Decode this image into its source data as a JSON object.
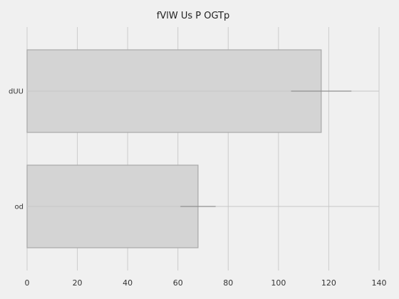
{
  "chart_data": {
    "type": "bar",
    "orientation": "horizontal",
    "title": "fVlW Us P OGTp",
    "xlabel": "",
    "ylabel": "",
    "categories": [
      "dUU",
      "od"
    ],
    "values": [
      117,
      68
    ],
    "error_bars": [
      {
        "whisker": [
          105,
          129
        ],
        "range": [
          0,
          140
        ]
      },
      {
        "whisker": [
          61,
          75
        ],
        "range": [
          0,
          140
        ]
      }
    ],
    "xlim": [
      0,
      140
    ],
    "xticks": [
      0,
      20,
      40,
      60,
      80,
      100,
      120,
      140
    ],
    "grid": true,
    "colors": {
      "background": "#f0f0f0",
      "bar_fill": "#d4d4d4",
      "bar_stroke": "#a8a8a8",
      "grid": "#cbcbcb",
      "whisker": "#8f8f8f",
      "range_line": "#c6c6c6"
    }
  }
}
